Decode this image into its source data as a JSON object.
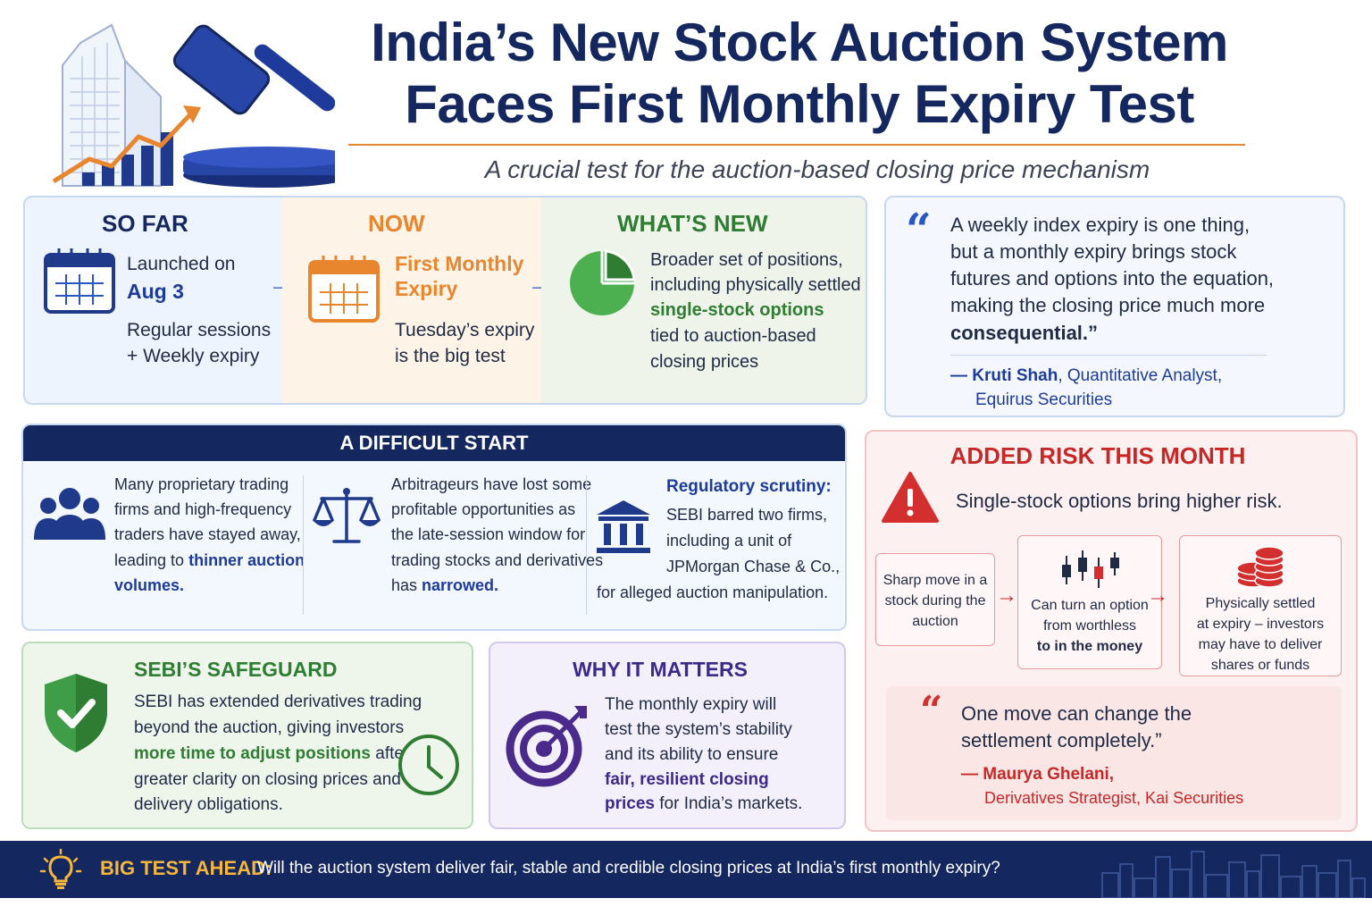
{
  "header": {
    "title_line1": "India’s New Stock Auction System",
    "title_line2": "Faces First Monthly Expiry Test",
    "subtitle": "A crucial test for the auction-based closing price mechanism"
  },
  "timeline": {
    "so_far": {
      "heading": "SO FAR",
      "launched_prefix": "Launched on",
      "launched_date": "Aug 3",
      "line1": "Regular sessions",
      "line2": "+ Weekly expiry"
    },
    "now": {
      "heading": "NOW",
      "highlight_line1": "First Monthly",
      "highlight_line2": "Expiry",
      "line1": "Tuesday’s expiry",
      "line2": "is the big test"
    },
    "whats_new": {
      "heading": "WHAT’S NEW",
      "line1": "Broader set of positions,",
      "line2": "including physically settled",
      "highlight": "single-stock options",
      "line3": "tied to auction-based",
      "line4": "closing prices"
    },
    "arrow": "→"
  },
  "quote1": {
    "mark": "“",
    "line1": "A weekly index expiry is one thing,",
    "line2": "but a monthly expiry brings stock",
    "line3": "futures and options into the equation,",
    "line4": "making the closing price much more",
    "line5": "consequential.”",
    "dash": "—",
    "author": "Kruti Shah",
    "role1": ", Quantitative Analyst,",
    "role2": "Equirus Securities"
  },
  "difficult": {
    "heading": "A DIFFICULT START",
    "col1": {
      "l1": "Many proprietary trading",
      "l2": "firms and high-frequency",
      "l3": "traders have stayed away,",
      "l4": "leading to ",
      "hl1": "thinner auction",
      "hl2": "volumes."
    },
    "col2": {
      "l1": "Arbitrageurs have lost some",
      "l2": "profitable opportunities as",
      "l3": "the late-session window for",
      "l4": "trading stocks and derivatives",
      "l5": "has ",
      "hl": "narrowed."
    },
    "col3": {
      "heading": "Regulatory scrutiny:",
      "l1": "SEBI barred two firms,",
      "l2": "including a unit of",
      "l3": "JPMorgan Chase & Co.,",
      "l4": "for alleged auction manipulation."
    }
  },
  "risk": {
    "heading": "ADDED RISK THIS MONTH",
    "intro": "Single-stock options bring higher risk.",
    "box1": {
      "l1": "Sharp move in a",
      "l2": "stock during the",
      "l3": "auction"
    },
    "box2": {
      "l1": "Can turn an option",
      "l2": "from worthless",
      "l3": "to in the money"
    },
    "box3": {
      "l1": "Physically settled",
      "l2": "at expiry – investors",
      "l3": "may have to deliver",
      "l4": "shares or funds"
    },
    "arrow": "→",
    "quote": {
      "mark": "“",
      "l1": "One move can change the",
      "l2": "settlement completely.”",
      "dash": "—",
      "author": "Maurya Ghelani,",
      "role": "Derivatives Strategist, Kai Securities"
    }
  },
  "safeguard": {
    "heading": "SEBI’S SAFEGUARD",
    "l1": "SEBI has extended derivatives trading",
    "l2": "beyond the auction, giving investors",
    "hl": "more time to adjust positions",
    "l3": " after",
    "l4": "greater clarity on closing prices and",
    "l5": "delivery obligations."
  },
  "matters": {
    "heading": "WHY IT MATTERS",
    "l1": "The monthly expiry will",
    "l2": "test the system’s stability",
    "l3": "and its ability to ensure",
    "hl1": "fair, resilient closing",
    "hl2": "prices",
    "l4": " for India’s markets."
  },
  "bottom": {
    "label": "BIG TEST AHEAD:",
    "text": "Will the auction system deliver fair, stable and credible closing prices at India’s first monthly expiry?"
  },
  "colors": {
    "navy": "#14275e",
    "orange": "#e8852f",
    "green": "#2e7d32",
    "red": "#c62828",
    "purple": "#4a2a8a"
  },
  "icons": [
    "building-icon",
    "gavel-icon",
    "growth-chart-icon",
    "calendar-icon",
    "pie-chart-icon",
    "quote-icon",
    "people-icon",
    "scales-icon",
    "bank-icon",
    "warning-icon",
    "candlestick-icon",
    "coins-icon",
    "shield-check-icon",
    "clock-icon",
    "target-icon",
    "lightbulb-icon",
    "skyline-icon"
  ]
}
